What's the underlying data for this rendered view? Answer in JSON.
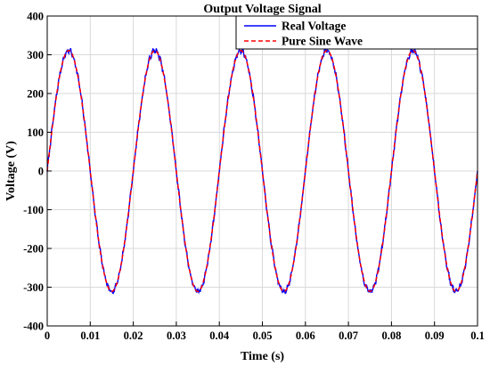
{
  "chart_data": {
    "type": "line",
    "title": "Output Voltage Signal",
    "xlabel": "Time (s)",
    "ylabel": "Voltage (V)",
    "xlim": [
      0,
      0.1
    ],
    "ylim": [
      -400,
      400
    ],
    "xticks": [
      "0",
      "0.01",
      "0.02",
      "0.03",
      "0.04",
      "0.05",
      "0.06",
      "0.07",
      "0.08",
      "0.09",
      "0.1"
    ],
    "yticks": [
      "-400",
      "-300",
      "-200",
      "-100",
      "0",
      "100",
      "200",
      "300",
      "400"
    ],
    "grid": true,
    "legend_position": "top-right",
    "series": [
      {
        "name": "Real Voltage",
        "color": "#0000ff",
        "style": "solid",
        "frequency_hz": 50,
        "amplitude": 311,
        "x": [
          0,
          0.0025,
          0.005,
          0.0075,
          0.01,
          0.0125,
          0.015,
          0.0175,
          0.02,
          0.0225,
          0.025,
          0.0275,
          0.03,
          0.0325,
          0.035,
          0.0375,
          0.04,
          0.0425,
          0.045,
          0.0475,
          0.05,
          0.0525,
          0.055,
          0.0575,
          0.06,
          0.0625,
          0.065,
          0.0675,
          0.07,
          0.0725,
          0.075,
          0.0775,
          0.08,
          0.0825,
          0.085,
          0.0875,
          0.09,
          0.0925,
          0.095,
          0.0975,
          0.1
        ],
        "y": [
          0,
          220,
          318,
          220,
          0,
          -220,
          -315,
          -220,
          0,
          220,
          312,
          220,
          0,
          -220,
          -312,
          -220,
          0,
          220,
          314,
          220,
          0,
          -220,
          -312,
          -220,
          0,
          220,
          314,
          220,
          0,
          -220,
          -312,
          -220,
          0,
          220,
          314,
          220,
          0,
          -220,
          -312,
          -220,
          0
        ]
      },
      {
        "name": "Pure Sine Wave",
        "color": "#ff0000",
        "style": "dashed",
        "frequency_hz": 50,
        "amplitude": 311,
        "x": [
          0,
          0.0025,
          0.005,
          0.0075,
          0.01,
          0.0125,
          0.015,
          0.0175,
          0.02,
          0.0225,
          0.025,
          0.0275,
          0.03,
          0.0325,
          0.035,
          0.0375,
          0.04,
          0.0425,
          0.045,
          0.0475,
          0.05,
          0.0525,
          0.055,
          0.0575,
          0.06,
          0.0625,
          0.065,
          0.0675,
          0.07,
          0.0725,
          0.075,
          0.0775,
          0.08,
          0.0825,
          0.085,
          0.0875,
          0.09,
          0.0925,
          0.095,
          0.0975,
          0.1
        ],
        "y": [
          0,
          220,
          311,
          220,
          0,
          -220,
          -311,
          -220,
          0,
          220,
          311,
          220,
          0,
          -220,
          -311,
          -220,
          0,
          220,
          311,
          220,
          0,
          -220,
          -311,
          -220,
          0,
          220,
          311,
          220,
          0,
          -220,
          -311,
          -220,
          0,
          220,
          311,
          220,
          0,
          -220,
          -311,
          -220,
          0
        ]
      }
    ]
  }
}
